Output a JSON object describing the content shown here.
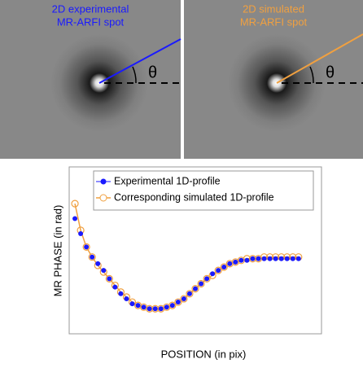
{
  "panels": [
    {
      "title": [
        "2D experimental",
        "MR-ARFI spot"
      ],
      "color": "#1a1aff",
      "angle_label": "θ"
    },
    {
      "title": [
        "2D simulated",
        "MR-ARFI spot"
      ],
      "color": "#f0a040",
      "angle_label": "θ"
    }
  ],
  "chart_data": {
    "type": "line",
    "x_label": "POSITION (in pix)",
    "y_label": "MR PHASE (in rad)",
    "x": [
      0,
      1,
      2,
      3,
      4,
      5,
      6,
      7,
      8,
      9,
      10,
      11,
      12,
      13,
      14,
      15,
      16,
      17,
      18,
      19,
      20,
      21,
      22,
      23,
      24,
      25,
      26,
      27,
      28,
      29,
      30,
      31,
      32,
      33,
      34,
      35,
      36,
      37,
      38,
      39
    ],
    "xlim": [
      -1,
      43
    ],
    "ylim": [
      0,
      1
    ],
    "series": [
      {
        "name": "Experimental 1D-profile",
        "color": "#1a1aff",
        "values": [
          0.69,
          0.6,
          0.52,
          0.46,
          0.42,
          0.38,
          0.33,
          0.28,
          0.24,
          0.21,
          0.18,
          0.17,
          0.16,
          0.15,
          0.15,
          0.15,
          0.16,
          0.17,
          0.19,
          0.21,
          0.24,
          0.27,
          0.3,
          0.33,
          0.36,
          0.38,
          0.4,
          0.42,
          0.43,
          0.44,
          0.44,
          0.45,
          0.45,
          0.45,
          0.45,
          0.45,
          0.45,
          0.45,
          0.45,
          0.45
        ]
      },
      {
        "name": "Corresponding simulated 1D-profile",
        "color": "#f0a040",
        "values": [
          0.78,
          0.62,
          0.52,
          0.46,
          0.41,
          0.37,
          0.33,
          0.29,
          0.25,
          0.22,
          0.19,
          0.17,
          0.16,
          0.15,
          0.15,
          0.15,
          0.16,
          0.17,
          0.19,
          0.21,
          0.24,
          0.27,
          0.3,
          0.33,
          0.35,
          0.38,
          0.4,
          0.42,
          0.43,
          0.44,
          0.45,
          0.45,
          0.45,
          0.46,
          0.46,
          0.46,
          0.46,
          0.46,
          0.46,
          0.46
        ]
      }
    ]
  }
}
